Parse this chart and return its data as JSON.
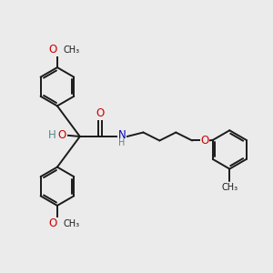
{
  "background_color": "#ebebeb",
  "bond_color": "#1a1a1a",
  "bond_width": 1.4,
  "atom_colors": {
    "O": "#cc0000",
    "N": "#0000bb",
    "H": "#558888",
    "C": "#1a1a1a"
  },
  "font_size_atom": 8.5,
  "font_size_small": 7.0,
  "figsize": [
    3.0,
    3.0
  ],
  "dpi": 100,
  "xlim": [
    0,
    12
  ],
  "ylim": [
    0,
    12
  ]
}
